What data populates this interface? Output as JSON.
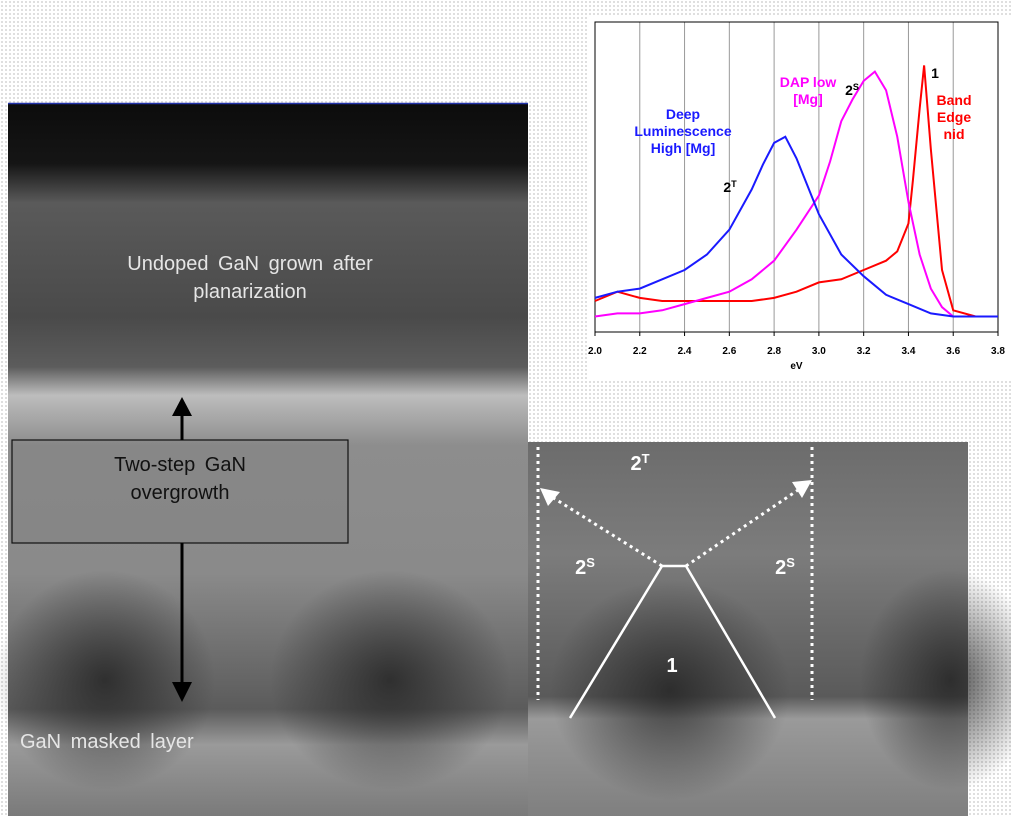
{
  "image": {
    "labels": {
      "undoped": "Undoped GaN grown after planarization",
      "two_step": "Two-step GaN overgrowth",
      "masked": "GaN masked layer"
    },
    "regions": [
      {
        "base": "2",
        "sup": "T"
      },
      {
        "base": "2",
        "sup": "S"
      },
      {
        "base": "2",
        "sup": "S"
      },
      {
        "base": "1"
      }
    ]
  },
  "chart_data": {
    "type": "line",
    "xlabel": "eV",
    "xlim": [
      2.0,
      3.8
    ],
    "ylim": [
      0,
      100
    ],
    "xticks": [
      {
        "value": 2.0,
        "label": "2.0"
      },
      2.2,
      2.4,
      2.6,
      2.8,
      {
        "value": 3.0,
        "label": "3.0"
      },
      3.2,
      3.4,
      3.6,
      3.8
    ],
    "grid": true,
    "series": [
      {
        "name": "Deep Luminescence High [Mg]",
        "color": "#1a1aff",
        "x": [
          2.0,
          2.1,
          2.2,
          2.3,
          2.4,
          2.5,
          2.6,
          2.7,
          2.75,
          2.8,
          2.85,
          2.9,
          2.95,
          3.0,
          3.1,
          3.2,
          3.3,
          3.4,
          3.5,
          3.6,
          3.7,
          3.8
        ],
        "values": [
          11,
          13,
          14,
          17,
          20,
          25,
          33,
          46,
          54,
          61,
          63,
          56,
          47,
          38,
          25,
          18,
          12,
          9,
          6,
          5,
          5,
          5
        ]
      },
      {
        "name": "DAP low [Mg]",
        "color": "#ff00ff",
        "x": [
          2.0,
          2.1,
          2.2,
          2.3,
          2.4,
          2.5,
          2.6,
          2.7,
          2.8,
          2.9,
          3.0,
          3.05,
          3.1,
          3.15,
          3.2,
          3.25,
          3.3,
          3.35,
          3.4,
          3.45,
          3.5,
          3.55,
          3.6,
          3.7,
          3.8
        ],
        "values": [
          5,
          6,
          6,
          7,
          9,
          11,
          13,
          17,
          23,
          33,
          44,
          55,
          68,
          75,
          81,
          84,
          78,
          63,
          42,
          25,
          14,
          8,
          5,
          5,
          5
        ]
      },
      {
        "name": "Band Edge nid",
        "color": "#ff0000",
        "x": [
          2.0,
          2.1,
          2.2,
          2.3,
          2.4,
          2.5,
          2.6,
          2.7,
          2.8,
          2.9,
          3.0,
          3.1,
          3.2,
          3.3,
          3.35,
          3.4,
          3.42,
          3.45,
          3.47,
          3.5,
          3.55,
          3.6,
          3.7,
          3.8
        ],
        "values": [
          10,
          13,
          11,
          10,
          10,
          10,
          10,
          10,
          11,
          13,
          16,
          17,
          20,
          23,
          26,
          35,
          49,
          72,
          86,
          59,
          20,
          7,
          5,
          5
        ]
      }
    ],
    "annotations": [
      {
        "base": "2",
        "sup": "T"
      },
      {
        "base": "2",
        "sup": "S"
      },
      {
        "base": "1"
      }
    ]
  }
}
